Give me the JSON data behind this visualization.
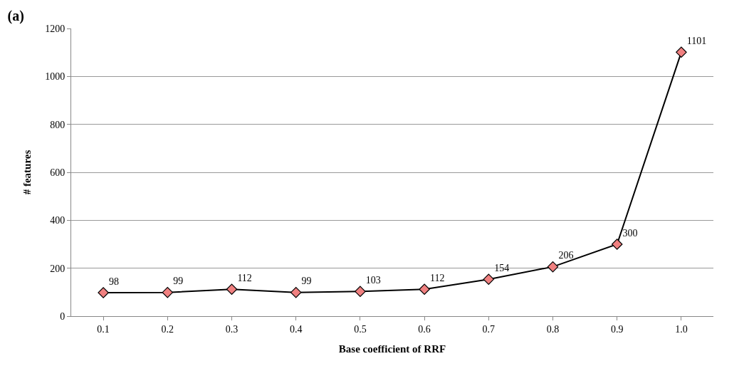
{
  "chart_data": {
    "type": "line",
    "title": "(a)",
    "xlabel": "Base coefficient of RRF",
    "ylabel": "# features",
    "categories": [
      "0.1",
      "0.2",
      "0.3",
      "0.4",
      "0.5",
      "0.6",
      "0.7",
      "0.8",
      "0.9",
      "1.0"
    ],
    "series": [
      {
        "color": "#f08080",
        "values": [
          98,
          99,
          112,
          99,
          103,
          112,
          154,
          206,
          300,
          1101
        ]
      }
    ],
    "ylim": [
      0,
      1200
    ],
    "yticks": [
      0,
      200,
      400,
      600,
      800,
      1000,
      1200
    ],
    "grid": "y",
    "legend": false,
    "marker": "diamond",
    "line_style": "solid",
    "data_labels": true
  }
}
